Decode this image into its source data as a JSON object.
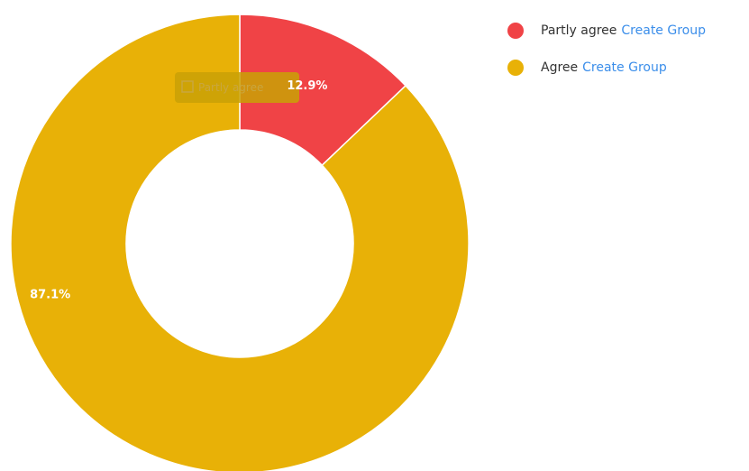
{
  "chart_data": {
    "type": "pie",
    "donut": true,
    "categories": [
      "Partly agree",
      "Agree"
    ],
    "values": [
      12.9,
      87.1
    ],
    "data_labels": [
      "12.9%",
      "87.1%"
    ],
    "colors": [
      "#f04346",
      "#e8b107"
    ],
    "legend_position": "top-right",
    "tooltip": {
      "text": "Partly agree"
    }
  },
  "legend": {
    "items": [
      {
        "label": "Partly agree",
        "action": "Create Group",
        "color": "#f04346"
      },
      {
        "label": "Agree",
        "action": "Create Group",
        "color": "#e8b107"
      }
    ]
  }
}
